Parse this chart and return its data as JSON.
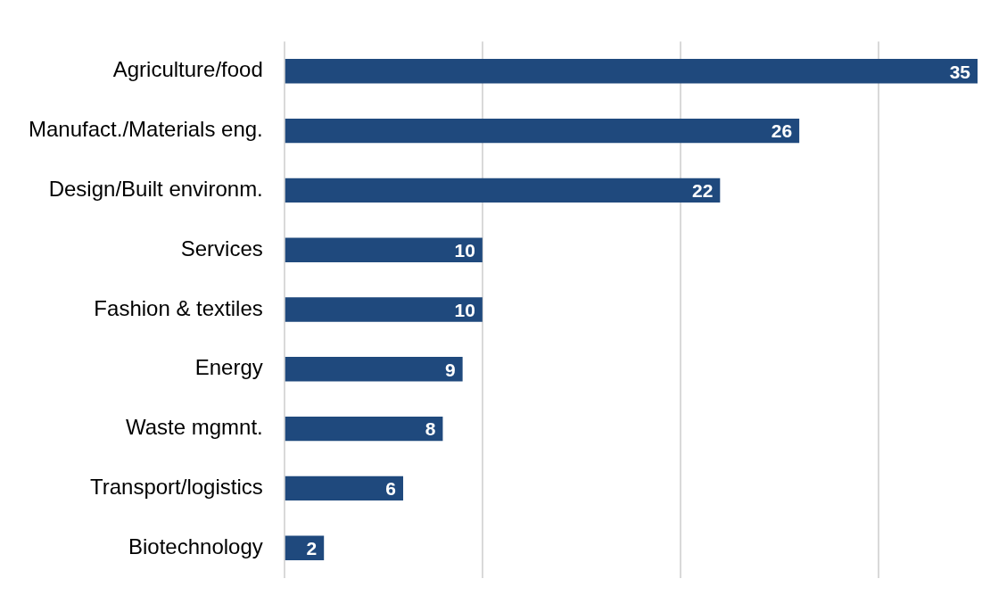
{
  "chart_data": {
    "type": "bar",
    "orientation": "horizontal",
    "categories": [
      "Agriculture/food",
      "Manufact./Materials eng.",
      "Design/Built environm.",
      "Services",
      "Fashion & textiles",
      "Energy",
      "Waste mgmnt.",
      "Transport/logistics",
      "Biotechnology"
    ],
    "values": [
      35,
      26,
      22,
      10,
      10,
      9,
      8,
      6,
      2
    ],
    "color": "#1f497d",
    "xticks": [
      {
        "value": 0,
        "label": null
      },
      {
        "value": 10,
        "label": null
      },
      {
        "value": 20,
        "label": null
      },
      {
        "value": 30,
        "label": null
      }
    ],
    "grid": "x",
    "tick_labels": "y",
    "data_labels": true
  }
}
